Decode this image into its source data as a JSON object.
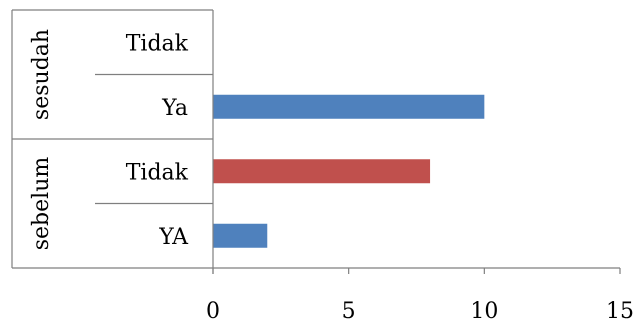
{
  "chart_data": {
    "type": "bar",
    "orientation": "horizontal",
    "groups": [
      {
        "name": "sesudah",
        "bars": [
          {
            "category": "Tidak",
            "value": 0,
            "color": "#c0504d"
          },
          {
            "category": "Ya",
            "value": 10,
            "color": "#4f81bd"
          }
        ]
      },
      {
        "name": "sebelum",
        "bars": [
          {
            "category": "Tidak",
            "value": 8,
            "color": "#c0504d"
          },
          {
            "category": "YA",
            "value": 2,
            "color": "#4f81bd"
          }
        ]
      }
    ],
    "xlim": [
      0,
      15
    ],
    "xticks": [
      "0",
      "5",
      "10",
      "15"
    ],
    "grid": false,
    "legend": "none"
  }
}
